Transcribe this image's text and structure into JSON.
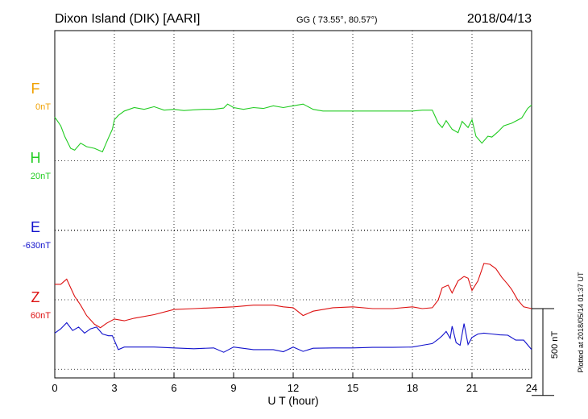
{
  "header": {
    "station": "Dixon Island (DIK)  [AARI]",
    "coords": "GG ( 73.55°,  80.57°)",
    "date": "2018/04/13"
  },
  "footer_note": "Plotted at 2018/05/14 01:37 UT",
  "colors": {
    "F": "#f0a000",
    "H": "#22cc22",
    "E": "#1111cc",
    "Z": "#dd1111",
    "axes": "#000000",
    "grid": "#000000"
  },
  "chart_data": {
    "type": "line",
    "title": "Dixon Island (DIK)  [AARI]",
    "xlabel": "U T (hour)",
    "xlim": [
      0,
      24
    ],
    "xticks": [
      0,
      3,
      6,
      9,
      12,
      15,
      18,
      21,
      24
    ],
    "xtick_labels": [
      "0",
      "3",
      "6",
      "9",
      "12",
      "15",
      "18",
      "21",
      "24"
    ],
    "ylim_nT": [
      -850,
      1150
    ],
    "grid": true,
    "scale_bar": {
      "label": "500 nT",
      "value_nT": 500
    },
    "series": [
      {
        "name": "F",
        "baseline_label": "0nT",
        "color": "#f0a000",
        "x": [],
        "y": []
      },
      {
        "name": "H",
        "baseline_label": "20nT",
        "color": "#22cc22",
        "x": [
          0,
          0.3,
          0.5,
          0.8,
          1.0,
          1.3,
          1.6,
          2.0,
          2.4,
          2.7,
          2.9,
          3.0,
          3.2,
          3.5,
          4.0,
          4.5,
          5.0,
          5.5,
          6.0,
          6.5,
          7.0,
          7.5,
          8.0,
          8.5,
          8.7,
          9.0,
          9.5,
          10.0,
          10.5,
          11.0,
          11.5,
          12.0,
          12.5,
          13.0,
          13.5,
          14.0,
          15.0,
          16.0,
          17.0,
          18.0,
          18.5,
          19.0,
          19.3,
          19.5,
          19.7,
          20.0,
          20.3,
          20.5,
          20.8,
          21.0,
          21.2,
          21.5,
          21.8,
          22.0,
          22.3,
          22.6,
          23.0,
          23.5,
          23.8,
          24.0
        ],
        "y": [
          300,
          250,
          190,
          120,
          110,
          150,
          130,
          120,
          100,
          180,
          230,
          285,
          310,
          335,
          355,
          345,
          360,
          340,
          345,
          338,
          342,
          345,
          345,
          352,
          375,
          355,
          345,
          355,
          350,
          365,
          355,
          365,
          375,
          345,
          335,
          335,
          335,
          335,
          335,
          335,
          340,
          340,
          265,
          240,
          280,
          230,
          210,
          275,
          240,
          285,
          190,
          150,
          190,
          185,
          215,
          250,
          265,
          295,
          350,
          370
        ]
      },
      {
        "name": "E",
        "baseline_label": "-630nT",
        "color": "#1111cc",
        "x": [
          0,
          0.3,
          0.6,
          0.9,
          1.2,
          1.5,
          1.8,
          2.1,
          2.4,
          2.7,
          2.9,
          3.2,
          3.5,
          4.0,
          5.0,
          6.0,
          7.0,
          8.0,
          8.5,
          9.0,
          10.0,
          11.0,
          11.5,
          12.0,
          12.5,
          13.0,
          14.0,
          15.0,
          16.0,
          17.0,
          18.0,
          18.5,
          19.0,
          19.3,
          19.5,
          19.7,
          19.9,
          20.0,
          20.2,
          20.4,
          20.6,
          20.8,
          21.0,
          21.3,
          21.6,
          22.0,
          22.4,
          22.8,
          23.2,
          23.6,
          24.0
        ],
        "y": [
          -545,
          -520,
          -485,
          -530,
          -510,
          -545,
          -520,
          -510,
          -550,
          -560,
          -560,
          -640,
          -625,
          -625,
          -625,
          -630,
          -635,
          -630,
          -655,
          -625,
          -640,
          -640,
          -652,
          -625,
          -650,
          -632,
          -630,
          -630,
          -627,
          -627,
          -625,
          -615,
          -605,
          -580,
          -560,
          -535,
          -575,
          -505,
          -600,
          -615,
          -490,
          -610,
          -570,
          -550,
          -545,
          -550,
          -555,
          -557,
          -585,
          -585,
          -640
        ]
      },
      {
        "name": "Z",
        "baseline_label": "60nT",
        "color": "#dd1111",
        "x": [
          0,
          0.3,
          0.6,
          0.8,
          1.0,
          1.3,
          1.6,
          2.0,
          2.3,
          2.6,
          3.0,
          3.5,
          4.0,
          5.0,
          6.0,
          7.0,
          8.0,
          9.0,
          10.0,
          11.0,
          11.5,
          12.0,
          12.5,
          13.0,
          14.0,
          15.0,
          16.0,
          17.0,
          18.0,
          18.5,
          19.0,
          19.3,
          19.5,
          19.8,
          20.0,
          20.3,
          20.6,
          20.8,
          21.0,
          21.3,
          21.6,
          21.9,
          22.2,
          22.5,
          22.8,
          23.0,
          23.3,
          23.6,
          24.0
        ],
        "y": [
          140,
          140,
          170,
          120,
          70,
          20,
          -40,
          -90,
          -110,
          -85,
          -60,
          -70,
          -55,
          -35,
          -5,
          0,
          5,
          10,
          20,
          20,
          10,
          5,
          -40,
          -15,
          5,
          10,
          0,
          0,
          10,
          0,
          5,
          50,
          120,
          135,
          90,
          160,
          185,
          175,
          105,
          160,
          260,
          255,
          230,
          180,
          140,
          110,
          50,
          10,
          0
        ]
      }
    ]
  }
}
